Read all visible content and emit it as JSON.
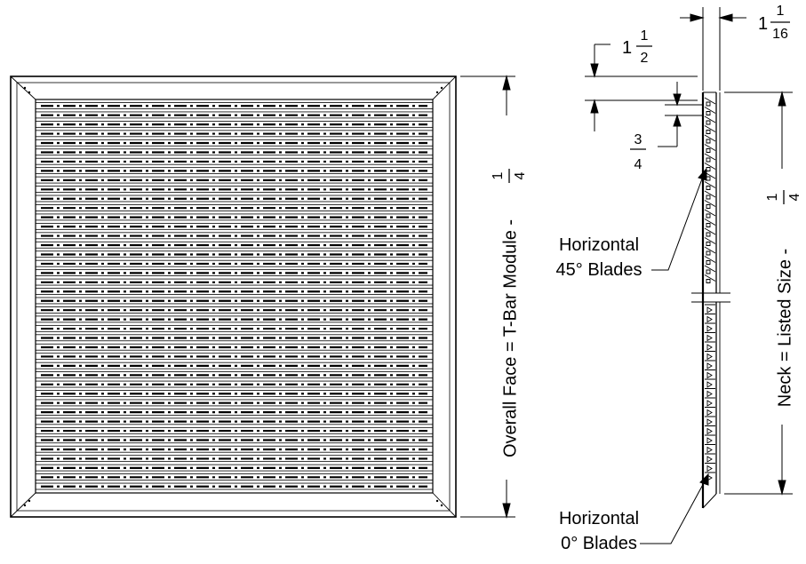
{
  "front_view": {
    "dimension_label": "Overall Face = T-Bar Module -",
    "fraction": {
      "num": "1",
      "den": "4"
    }
  },
  "side_view": {
    "top_depth": {
      "whole": "1",
      "num": "1",
      "den": "16"
    },
    "flange": {
      "whole": "1",
      "num": "1",
      "den": "2"
    },
    "blade_pitch": {
      "num": "3",
      "den": "4"
    },
    "neck_label": "Neck = Listed Size -",
    "neck_fraction": {
      "num": "1",
      "den": "4"
    },
    "callout_45": {
      "line1": "Horizontal",
      "line2": "45° Blades"
    },
    "callout_0": {
      "line1": "Horizontal",
      "line2": "0° Blades"
    }
  },
  "colors": {
    "ink": "#000000",
    "paper": "#ffffff"
  }
}
